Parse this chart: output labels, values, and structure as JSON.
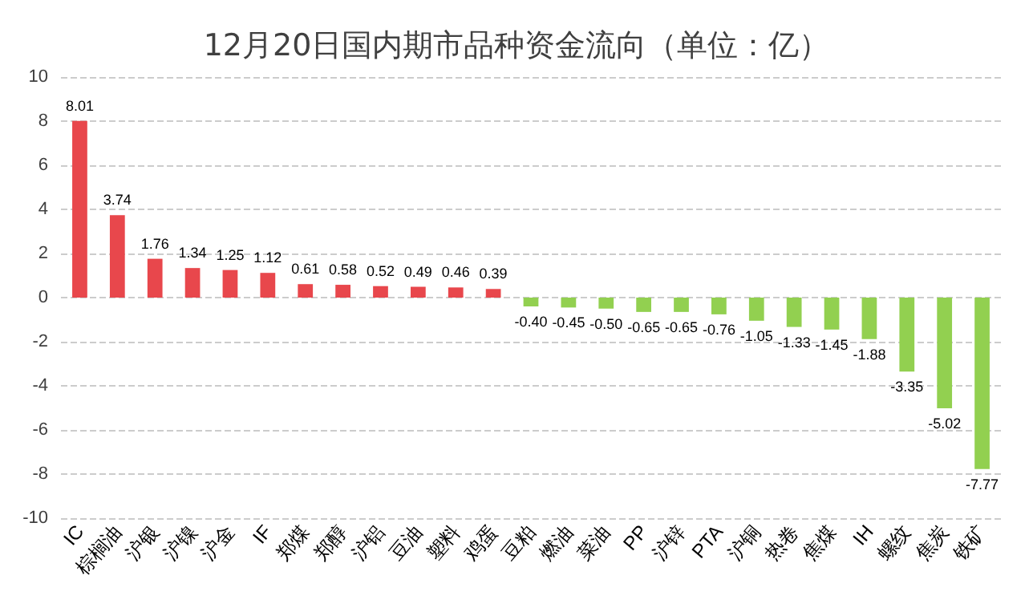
{
  "chart_data": {
    "type": "bar",
    "title": "12月20日国内期市品种资金流向（单位：亿）",
    "categories": [
      "IC",
      "棕榈油",
      "沪银",
      "沪镍",
      "沪金",
      "IF",
      "郑煤",
      "郑醇",
      "沪铝",
      "豆油",
      "塑料",
      "鸡蛋",
      "豆粕",
      "燃油",
      "菜油",
      "PP",
      "沪锌",
      "PTA",
      "沪铜",
      "热卷",
      "焦煤",
      "IH",
      "螺纹",
      "焦炭",
      "铁矿"
    ],
    "values": [
      8.01,
      3.74,
      1.76,
      1.34,
      1.25,
      1.12,
      0.61,
      0.58,
      0.52,
      0.49,
      0.46,
      0.39,
      -0.4,
      -0.45,
      -0.5,
      -0.65,
      -0.65,
      -0.76,
      -1.05,
      -1.33,
      -1.45,
      -1.88,
      -3.35,
      -5.02,
      -7.77
    ],
    "colors": [
      "#e8474c",
      "#e8474c",
      "#e8474c",
      "#e8474c",
      "#e8474c",
      "#e8474c",
      "#e8474c",
      "#e8474c",
      "#e8474c",
      "#e8474c",
      "#e8474c",
      "#e8474c",
      "#92d050",
      "#92d050",
      "#92d050",
      "#92d050",
      "#92d050",
      "#92d050",
      "#92d050",
      "#92d050",
      "#92d050",
      "#92d050",
      "#92d050",
      "#92d050",
      "#92d050"
    ],
    "ylim": [
      -10,
      10
    ],
    "yticks": [
      -10,
      -8,
      -6,
      -4,
      -2,
      0,
      2,
      4,
      6,
      8,
      10
    ],
    "value_labels": [
      "8.01",
      "3.74",
      "1.76",
      "1.34",
      "1.25",
      "1.12",
      "0.61",
      "0.58",
      "0.52",
      "0.49",
      "0.46",
      "0.39",
      "-0.40",
      "-0.45",
      "-0.50",
      "-0.65",
      "-0.65",
      "-0.76",
      "-1.05",
      "-1.33",
      "-1.45",
      "-1.88",
      "-3.35",
      "-5.02",
      "-7.77"
    ],
    "grid": "y"
  }
}
